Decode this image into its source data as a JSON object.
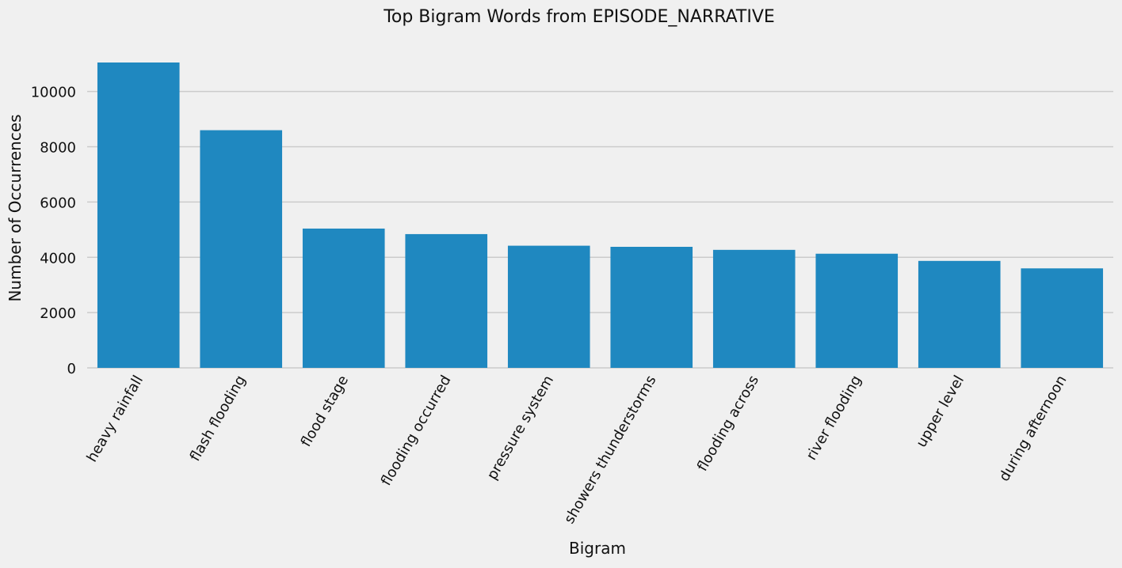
{
  "chart_data": {
    "type": "bar",
    "title": "Top Bigram Words from EPISODE_NARRATIVE",
    "xlabel": "Bigram",
    "ylabel": "Number of Occurrences",
    "categories": [
      "heavy rainfall",
      "flash flooding",
      "flood stage",
      "flooding occurred",
      "pressure system",
      "showers thunderstorms",
      "flooding across",
      "river flooding",
      "upper level",
      "during afternoon"
    ],
    "values": [
      11050,
      8600,
      5040,
      4840,
      4420,
      4380,
      4270,
      4130,
      3870,
      3600
    ],
    "ylim": [
      0,
      11050
    ],
    "yticks": [
      0,
      2000,
      4000,
      6000,
      8000,
      10000
    ],
    "grid": {
      "y": true,
      "x": false
    },
    "colors": {
      "bar": "#1f88c0",
      "background": "#f0f0f0",
      "grid": "#cbcbcb"
    }
  }
}
